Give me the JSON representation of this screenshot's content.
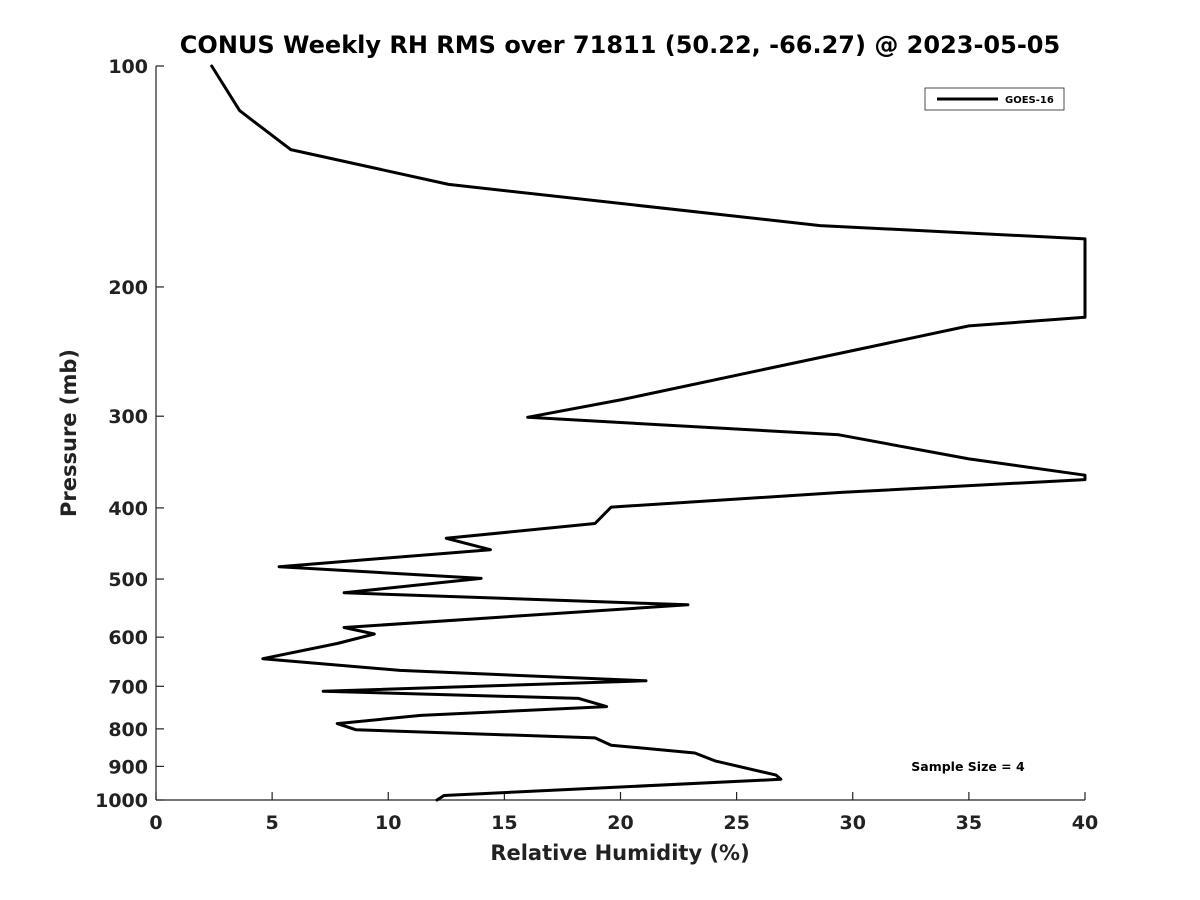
{
  "chart_data": {
    "type": "line",
    "title": "CONUS Weekly RH RMS over 71811 (50.22, -66.27) @ 2023-05-05",
    "xlabel": "Relative Humidity (%)",
    "ylabel": "Pressure (mb)",
    "xlim": [
      0,
      40
    ],
    "ylim": [
      1000,
      100
    ],
    "y_scale": "log",
    "x_ticks": [
      "0",
      "5",
      "10",
      "15",
      "20",
      "25",
      "30",
      "35",
      "40"
    ],
    "y_ticks": [
      "100",
      "200",
      "300",
      "400",
      "500",
      "600",
      "700",
      "800",
      "900",
      "1000"
    ],
    "grid": false,
    "legend_position": "top-right",
    "annotation": "Sample Size = 4",
    "series": [
      {
        "name": "GOES-16",
        "color": "#000000",
        "points": [
          [
            2.4,
            100
          ],
          [
            3.6,
            115
          ],
          [
            5.8,
            130
          ],
          [
            12.6,
            145
          ],
          [
            28.6,
            165
          ],
          [
            40,
            172
          ],
          [
            40,
            220
          ],
          [
            35.0,
            226
          ],
          [
            20.0,
            285
          ],
          [
            16.0,
            301
          ],
          [
            29.4,
            318
          ],
          [
            35.0,
            343
          ],
          [
            40,
            361
          ],
          [
            40,
            366
          ],
          [
            29.5,
            381
          ],
          [
            19.6,
            399
          ],
          [
            18.9,
            420
          ],
          [
            12.5,
            440
          ],
          [
            14.4,
            456
          ],
          [
            5.3,
            481
          ],
          [
            14.0,
            499
          ],
          [
            8.1,
            522
          ],
          [
            22.9,
            542
          ],
          [
            8.1,
            582
          ],
          [
            9.4,
            594
          ],
          [
            7.8,
            612
          ],
          [
            4.6,
            642
          ],
          [
            10.5,
            666
          ],
          [
            21.1,
            688
          ],
          [
            7.2,
            711
          ],
          [
            18.2,
            727
          ],
          [
            19.4,
            746
          ],
          [
            11.4,
            767
          ],
          [
            7.8,
            787
          ],
          [
            8.6,
            802
          ],
          [
            18.9,
            823
          ],
          [
            19.6,
            842
          ],
          [
            23.2,
            863
          ],
          [
            24.1,
            885
          ],
          [
            26.7,
            925
          ],
          [
            26.9,
            937
          ],
          [
            12.4,
            986
          ],
          [
            12.1,
            1000
          ]
        ]
      }
    ]
  }
}
